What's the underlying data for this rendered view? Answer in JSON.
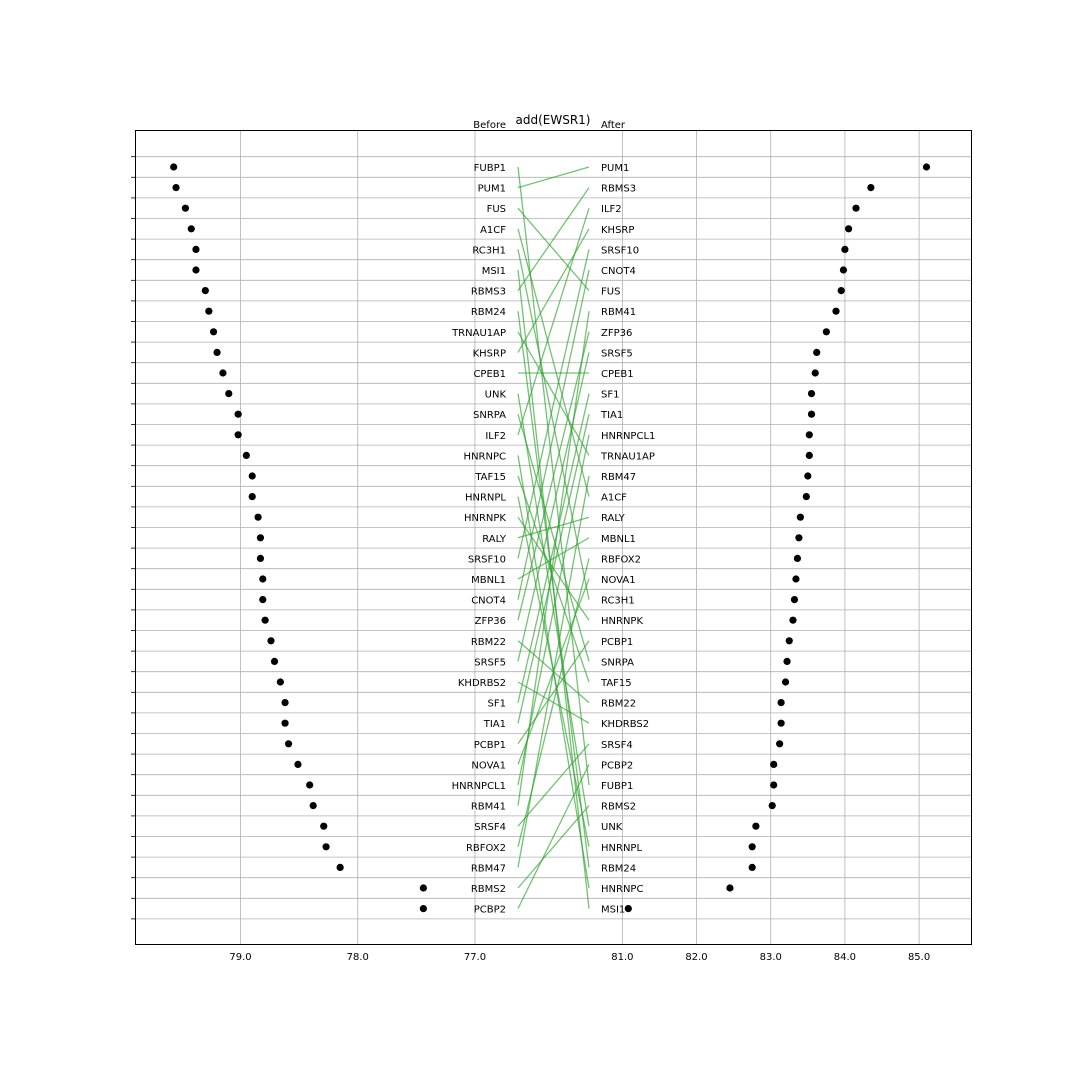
{
  "chart_data": {
    "type": "slope",
    "title": "add(EWSR1)",
    "left_header": "Before",
    "right_header": "After",
    "before": {
      "labels": [
        "FUBP1",
        "PUM1",
        "FUS",
        "A1CF",
        "RC3H1",
        "MSI1",
        "RBMS3",
        "RBM24",
        "TRNAU1AP",
        "KHSRP",
        "CPEB1",
        "UNK",
        "SNRPA",
        "ILF2",
        "HNRNPC",
        "TAF15",
        "HNRNPL",
        "HNRNPK",
        "RALY",
        "SRSF10",
        "MBNL1",
        "CNOT4",
        "ZFP36",
        "RBM22",
        "SRSF5",
        "KHDRBS2",
        "SF1",
        "TIA1",
        "PCBP1",
        "NOVA1",
        "HNRNPCL1",
        "RBM41",
        "SRSF4",
        "RBFOX2",
        "RBM47",
        "RBMS2",
        "PCBP2"
      ],
      "values": [
        79.57,
        79.55,
        79.47,
        79.42,
        79.38,
        79.38,
        79.3,
        79.27,
        79.23,
        79.2,
        79.15,
        79.1,
        79.02,
        79.02,
        78.95,
        78.9,
        78.9,
        78.85,
        78.83,
        78.83,
        78.81,
        78.81,
        78.79,
        78.74,
        78.71,
        78.66,
        78.62,
        78.62,
        78.59,
        78.51,
        78.41,
        78.38,
        78.29,
        78.27,
        78.15,
        77.44,
        77.44
      ],
      "ticks": [
        79.0,
        78.0,
        77.0
      ],
      "xlim": [
        79.9,
        76.65
      ]
    },
    "after": {
      "labels": [
        "PUM1",
        "RBMS3",
        "ILF2",
        "KHSRP",
        "SRSF10",
        "CNOT4",
        "FUS",
        "RBM41",
        "ZFP36",
        "SRSF5",
        "CPEB1",
        "SF1",
        "TIA1",
        "HNRNPCL1",
        "TRNAU1AP",
        "RBM47",
        "A1CF",
        "RALY",
        "MBNL1",
        "RBFOX2",
        "NOVA1",
        "RC3H1",
        "HNRNPK",
        "PCBP1",
        "SNRPA",
        "TAF15",
        "RBM22",
        "KHDRBS2",
        "SRSF4",
        "PCBP2",
        "FUBP1",
        "RBMS2",
        "UNK",
        "HNRNPL",
        "RBM24",
        "HNRNPC",
        "MSI1"
      ],
      "values": [
        85.1,
        84.35,
        84.15,
        84.05,
        84.0,
        83.98,
        83.95,
        83.88,
        83.75,
        83.62,
        83.6,
        83.55,
        83.55,
        83.52,
        83.52,
        83.5,
        83.48,
        83.4,
        83.38,
        83.36,
        83.34,
        83.32,
        83.3,
        83.25,
        83.22,
        83.2,
        83.14,
        83.14,
        83.12,
        83.04,
        83.04,
        83.02,
        82.8,
        82.75,
        82.75,
        82.45,
        81.08
      ],
      "ticks": [
        81.0,
        82.0,
        83.0,
        84.0,
        85.0
      ],
      "xlim": [
        80.55,
        85.7
      ]
    },
    "line_color": "#2ca02c",
    "dot_color": "#000000",
    "grid": true
  }
}
